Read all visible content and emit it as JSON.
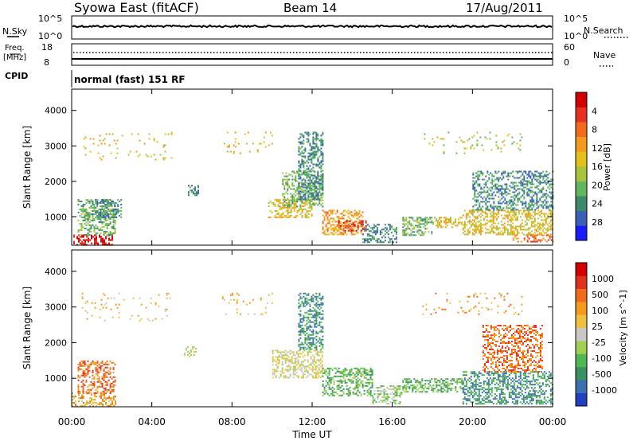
{
  "header": {
    "station": "Syowa East (fitACF)",
    "beam": "Beam 14",
    "date": "17/Aug/2011"
  },
  "nsky_panel": {
    "left_label": "N.Sky",
    "right_label": "N.Search",
    "left_top_tick": "10^5",
    "left_bottom_tick": "10^0",
    "right_top_tick": "10^5",
    "right_bottom_tick": "10^0"
  },
  "freq_panel": {
    "left_label_line1": "Freq.",
    "left_label_line2": "[MHz]",
    "left_ticks": [
      "18",
      "8"
    ],
    "right_ticks": [
      "60",
      "0"
    ],
    "right_label": "Nave",
    "cpid_label": "CPID",
    "cpid_text": "normal (fast) 151 RF"
  },
  "chart_data": [
    {
      "type": "heatmap",
      "title": "",
      "xlabel": "Time UT",
      "ylabel": "Slant Range [km]",
      "xlim": [
        0,
        24
      ],
      "ylim": [
        200,
        4600
      ],
      "y_ticks": [
        "1000",
        "2000",
        "3000",
        "4000"
      ],
      "x_ticks": [
        "00:00",
        "04:00",
        "08:00",
        "12:00",
        "16:00",
        "20:00",
        "00:00"
      ],
      "colorbar": {
        "label": "Power [dB]",
        "ticks": [
          "4",
          "8",
          "12",
          "16",
          "20",
          "24",
          "28"
        ],
        "colors": [
          "#1a1aff",
          "#3a5fb8",
          "#3c8a6a",
          "#5fb85f",
          "#a8c33c",
          "#e6c01a",
          "#f59a1a",
          "#f26a1a",
          "#e83020",
          "#d40000"
        ]
      },
      "echo_regions": [
        {
          "t": [
            0.0,
            2.0
          ],
          "r": [
            200,
            500
          ],
          "level": 9
        },
        {
          "t": [
            0.3,
            2.2
          ],
          "r": [
            500,
            1500
          ],
          "level": 3
        },
        {
          "t": [
            1.0,
            2.5
          ],
          "r": [
            1000,
            1500
          ],
          "level": 2
        },
        {
          "t": [
            5.8,
            6.3
          ],
          "r": [
            1600,
            1900
          ],
          "level": 2
        },
        {
          "t": [
            9.8,
            12.0
          ],
          "r": [
            1000,
            1500
          ],
          "level": 5
        },
        {
          "t": [
            10.5,
            12.5
          ],
          "r": [
            1300,
            2300
          ],
          "level": 3
        },
        {
          "t": [
            11.3,
            12.5
          ],
          "r": [
            1500,
            3400
          ],
          "level": 2
        },
        {
          "t": [
            12.5,
            14.5
          ],
          "r": [
            500,
            1200
          ],
          "level": 6
        },
        {
          "t": [
            13.3,
            14.7
          ],
          "r": [
            600,
            900
          ],
          "level": 8
        },
        {
          "t": [
            14.5,
            16.2
          ],
          "r": [
            300,
            800
          ],
          "level": 2
        },
        {
          "t": [
            16.5,
            18.0
          ],
          "r": [
            500,
            1000
          ],
          "level": 3
        },
        {
          "t": [
            18.0,
            19.5
          ],
          "r": [
            700,
            1000
          ],
          "level": 5
        },
        {
          "t": [
            19.5,
            24.0
          ],
          "r": [
            500,
            1200
          ],
          "level": 5
        },
        {
          "t": [
            20.0,
            24.0
          ],
          "r": [
            1200,
            2300
          ],
          "level": 2
        },
        {
          "t": [
            22.0,
            24.0
          ],
          "r": [
            300,
            500
          ],
          "level": 7
        },
        {
          "t": [
            0.5,
            5.0
          ],
          "r": [
            2600,
            3400
          ],
          "level": 5,
          "sparse": true
        },
        {
          "t": [
            7.5,
            10.0
          ],
          "r": [
            2800,
            3400
          ],
          "level": 5,
          "sparse": true
        },
        {
          "t": [
            17.5,
            22.5
          ],
          "r": [
            2800,
            3400
          ],
          "level": 4,
          "sparse": true
        }
      ]
    },
    {
      "type": "heatmap",
      "title": "",
      "xlabel": "Time UT",
      "ylabel": "Slant Range [km]",
      "xlim": [
        0,
        24
      ],
      "ylim": [
        200,
        4600
      ],
      "y_ticks": [
        "1000",
        "2000",
        "3000",
        "4000"
      ],
      "x_ticks": [
        "00:00",
        "04:00",
        "08:00",
        "12:00",
        "16:00",
        "20:00",
        "00:00"
      ],
      "colorbar": {
        "label": "Velocity [m s^-1]",
        "ticks": [
          "1000",
          "500",
          "100",
          "25",
          "-25",
          "-100",
          "-500",
          "-1000"
        ],
        "colors": [
          "#2040c0",
          "#3a6fb0",
          "#3a9060",
          "#50b850",
          "#a0d050",
          "#c8c8c8",
          "#f0c040",
          "#f59a1a",
          "#f06a1a",
          "#e03020",
          "#d40000"
        ]
      },
      "echo_regions": [
        {
          "t": [
            0.0,
            2.2
          ],
          "r": [
            200,
            600
          ],
          "level": 7
        },
        {
          "t": [
            0.3,
            2.2
          ],
          "r": [
            600,
            1500
          ],
          "level": 8
        },
        {
          "t": [
            5.6,
            6.2
          ],
          "r": [
            1600,
            1900
          ],
          "level": 5
        },
        {
          "t": [
            10.0,
            12.5
          ],
          "r": [
            1000,
            1800
          ],
          "level": 5
        },
        {
          "t": [
            11.3,
            12.5
          ],
          "r": [
            1800,
            3400
          ],
          "level": 2
        },
        {
          "t": [
            12.5,
            15.0
          ],
          "r": [
            500,
            1300
          ],
          "level": 3
        },
        {
          "t": [
            15.0,
            16.5
          ],
          "r": [
            300,
            800
          ],
          "level": 4
        },
        {
          "t": [
            16.5,
            19.5
          ],
          "r": [
            600,
            1000
          ],
          "level": 3
        },
        {
          "t": [
            19.5,
            24.0
          ],
          "r": [
            300,
            1200
          ],
          "level": 2
        },
        {
          "t": [
            20.5,
            23.5
          ],
          "r": [
            1200,
            2500
          ],
          "level": 8
        },
        {
          "t": [
            0.5,
            5.0
          ],
          "r": [
            2600,
            3400
          ],
          "level": 6,
          "sparse": true
        },
        {
          "t": [
            7.5,
            10.0
          ],
          "r": [
            2800,
            3400
          ],
          "level": 6,
          "sparse": true
        },
        {
          "t": [
            17.5,
            22.5
          ],
          "r": [
            2800,
            3400
          ],
          "level": 7,
          "sparse": true
        }
      ]
    }
  ]
}
